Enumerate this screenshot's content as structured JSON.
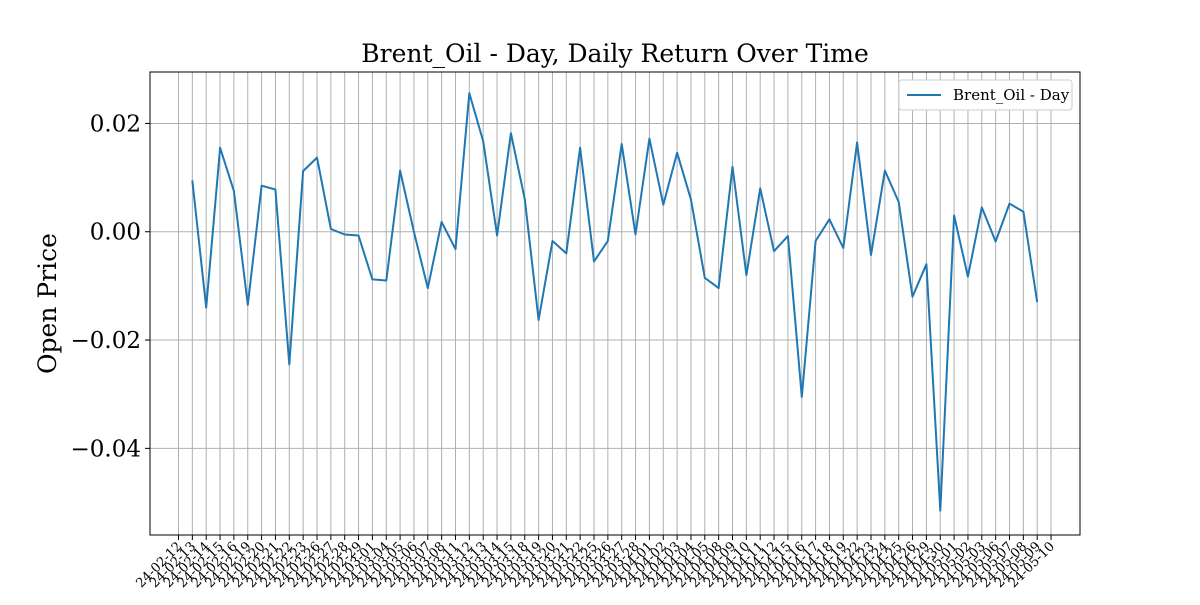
{
  "chart_data": {
    "type": "line",
    "title": "Brent_Oil - Day, Daily Return Over Time",
    "xlabel": "",
    "ylabel": "Open Price",
    "ylim": [
      -0.056,
      0.0295
    ],
    "yticks": [
      0.02,
      0.0,
      -0.02,
      -0.04
    ],
    "ytick_labels": [
      "0.02",
      "0.00",
      "−0.02",
      "−0.04"
    ],
    "grid": true,
    "legend_position": "top-right",
    "categories": [
      "24-02-12",
      "24-02-13",
      "24-02-14",
      "24-02-15",
      "24-02-16",
      "24-02-19",
      "24-02-20",
      "24-02-21",
      "24-02-22",
      "24-02-23",
      "24-02-26",
      "24-02-27",
      "24-02-28",
      "24-02-29",
      "24-03-01",
      "24-03-04",
      "24-03-05",
      "24-03-06",
      "24-03-07",
      "24-03-08",
      "24-03-11",
      "24-03-12",
      "24-03-13",
      "24-03-14",
      "24-03-15",
      "24-03-18",
      "24-03-19",
      "24-03-20",
      "24-03-21",
      "24-03-22",
      "24-03-25",
      "24-03-26",
      "24-03-27",
      "24-03-28",
      "24-04-01",
      "24-04-02",
      "24-04-03",
      "24-04-04",
      "24-04-05",
      "24-04-08",
      "24-04-09",
      "24-04-10",
      "24-04-11",
      "24-04-12",
      "24-04-15",
      "24-04-16",
      "24-04-17",
      "24-04-18",
      "24-04-19",
      "24-04-22",
      "24-04-23",
      "24-04-24",
      "24-04-25",
      "24-04-26",
      "24-04-29",
      "24-04-30",
      "24-05-01",
      "24-05-02",
      "24-05-03",
      "24-05-06",
      "24-05-07",
      "24-05-08",
      "24-05-09",
      "24-05-10"
    ],
    "series": [
      {
        "name": "Brent_Oil - Day",
        "color": "#1f77b4",
        "values": [
          null,
          0.0095,
          -0.014,
          0.0155,
          0.0075,
          -0.0135,
          0.0085,
          0.0078,
          -0.0245,
          0.0112,
          0.0137,
          0.0005,
          -0.0005,
          -0.0007,
          -0.0088,
          -0.009,
          0.0113,
          -0.0,
          -0.0104,
          0.0018,
          -0.0032,
          0.0256,
          0.0167,
          -0.0007,
          0.0182,
          0.006,
          -0.0163,
          -0.0017,
          -0.004,
          0.0155,
          -0.0055,
          -0.0017,
          0.0162,
          -0.0005,
          0.0172,
          0.005,
          0.0146,
          0.006,
          -0.0085,
          -0.0104,
          0.012,
          -0.008,
          0.008,
          -0.0036,
          -0.0008,
          -0.0305,
          -0.0017,
          0.0023,
          -0.003,
          0.0165,
          -0.0043,
          0.0113,
          0.0055,
          -0.012,
          -0.006,
          -0.0515,
          0.003,
          -0.0083,
          0.0045,
          -0.0018,
          0.0052,
          0.0037,
          -0.013,
          null
        ]
      }
    ]
  }
}
